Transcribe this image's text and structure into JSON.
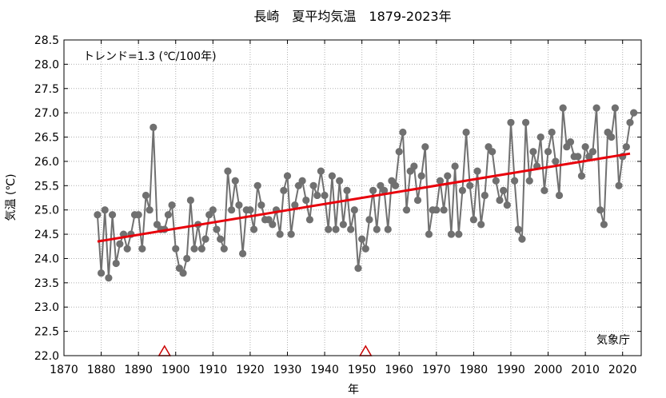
{
  "chart_data": {
    "type": "line",
    "title": "長崎　夏平均気温　1879-2023年",
    "xlabel": "年",
    "ylabel": "気温 (℃)",
    "xlim": [
      1870,
      2025
    ],
    "ylim": [
      22.0,
      28.5
    ],
    "xticks": [
      1870,
      1880,
      1890,
      1900,
      1910,
      1920,
      1930,
      1940,
      1950,
      1960,
      1970,
      1980,
      1990,
      2000,
      2010,
      2020
    ],
    "yticks": [
      "22.0",
      "22.5",
      "23.0",
      "23.5",
      "24.0",
      "24.5",
      "25.0",
      "25.5",
      "26.0",
      "26.5",
      "27.0",
      "27.5",
      "28.0",
      "28.5"
    ],
    "grid": true,
    "trend_label": "トレンド=1.3 (℃/100年)",
    "source_label": "気象庁",
    "colors": {
      "series": "#707070",
      "trend": "#e8000b",
      "marker": "#cc0000",
      "grid": "#b0b0b0"
    },
    "series": [
      {
        "values": [
          {
            "x": 1879,
            "y": 24.9
          },
          {
            "x": 1880,
            "y": 23.7
          },
          {
            "x": 1881,
            "y": 25.0
          },
          {
            "x": 1882,
            "y": 23.6
          },
          {
            "x": 1883,
            "y": 24.9
          },
          {
            "x": 1884,
            "y": 23.9
          },
          {
            "x": 1885,
            "y": 24.3
          },
          {
            "x": 1886,
            "y": 24.5
          },
          {
            "x": 1887,
            "y": 24.2
          },
          {
            "x": 1888,
            "y": 24.5
          },
          {
            "x": 1889,
            "y": 24.9
          },
          {
            "x": 1890,
            "y": 24.9
          },
          {
            "x": 1891,
            "y": 24.2
          },
          {
            "x": 1892,
            "y": 25.3
          },
          {
            "x": 1893,
            "y": 25.0
          },
          {
            "x": 1894,
            "y": 26.7
          },
          {
            "x": 1895,
            "y": 24.7
          },
          {
            "x": 1896,
            "y": 24.6
          },
          {
            "x": 1897,
            "y": 24.6
          },
          {
            "x": 1898,
            "y": 24.9
          },
          {
            "x": 1899,
            "y": 25.1
          },
          {
            "x": 1900,
            "y": 24.2
          },
          {
            "x": 1901,
            "y": 23.8
          },
          {
            "x": 1902,
            "y": 23.7
          },
          {
            "x": 1903,
            "y": 24.0
          },
          {
            "x": 1904,
            "y": 25.2
          },
          {
            "x": 1905,
            "y": 24.2
          },
          {
            "x": 1906,
            "y": 24.7
          },
          {
            "x": 1907,
            "y": 24.2
          },
          {
            "x": 1908,
            "y": 24.4
          },
          {
            "x": 1909,
            "y": 24.9
          },
          {
            "x": 1910,
            "y": 25.0
          },
          {
            "x": 1911,
            "y": 24.6
          },
          {
            "x": 1912,
            "y": 24.4
          },
          {
            "x": 1913,
            "y": 24.2
          },
          {
            "x": 1914,
            "y": 25.8
          },
          {
            "x": 1915,
            "y": 25.0
          },
          {
            "x": 1916,
            "y": 25.6
          },
          {
            "x": 1917,
            "y": 25.1
          },
          {
            "x": 1918,
            "y": 24.1
          },
          {
            "x": 1919,
            "y": 25.0
          },
          {
            "x": 1920,
            "y": 25.0
          },
          {
            "x": 1921,
            "y": 24.6
          },
          {
            "x": 1922,
            "y": 25.5
          },
          {
            "x": 1923,
            "y": 25.1
          },
          {
            "x": 1924,
            "y": 24.8
          },
          {
            "x": 1925,
            "y": 24.8
          },
          {
            "x": 1926,
            "y": 24.7
          },
          {
            "x": 1927,
            "y": 25.0
          },
          {
            "x": 1928,
            "y": 24.5
          },
          {
            "x": 1929,
            "y": 25.4
          },
          {
            "x": 1930,
            "y": 25.7
          },
          {
            "x": 1931,
            "y": 24.5
          },
          {
            "x": 1932,
            "y": 25.1
          },
          {
            "x": 1933,
            "y": 25.5
          },
          {
            "x": 1934,
            "y": 25.6
          },
          {
            "x": 1935,
            "y": 25.2
          },
          {
            "x": 1936,
            "y": 24.8
          },
          {
            "x": 1937,
            "y": 25.5
          },
          {
            "x": 1938,
            "y": 25.3
          },
          {
            "x": 1939,
            "y": 25.8
          },
          {
            "x": 1940,
            "y": 25.3
          },
          {
            "x": 1941,
            "y": 24.6
          },
          {
            "x": 1942,
            "y": 25.7
          },
          {
            "x": 1943,
            "y": 24.6
          },
          {
            "x": 1944,
            "y": 25.6
          },
          {
            "x": 1945,
            "y": 24.7
          },
          {
            "x": 1946,
            "y": 25.4
          },
          {
            "x": 1947,
            "y": 24.6
          },
          {
            "x": 1948,
            "y": 25.0
          },
          {
            "x": 1949,
            "y": 23.8
          },
          {
            "x": 1950,
            "y": 24.4
          },
          {
            "x": 1951,
            "y": 24.2
          },
          {
            "x": 1952,
            "y": 24.8
          },
          {
            "x": 1953,
            "y": 25.4
          },
          {
            "x": 1954,
            "y": 24.6
          },
          {
            "x": 1955,
            "y": 25.5
          },
          {
            "x": 1956,
            "y": 25.4
          },
          {
            "x": 1957,
            "y": 24.6
          },
          {
            "x": 1958,
            "y": 25.6
          },
          {
            "x": 1959,
            "y": 25.5
          },
          {
            "x": 1960,
            "y": 26.2
          },
          {
            "x": 1961,
            "y": 26.6
          },
          {
            "x": 1962,
            "y": 25.0
          },
          {
            "x": 1963,
            "y": 25.8
          },
          {
            "x": 1964,
            "y": 25.9
          },
          {
            "x": 1965,
            "y": 25.2
          },
          {
            "x": 1966,
            "y": 25.7
          },
          {
            "x": 1967,
            "y": 26.3
          },
          {
            "x": 1968,
            "y": 24.5
          },
          {
            "x": 1969,
            "y": 25.0
          },
          {
            "x": 1970,
            "y": 25.0
          },
          {
            "x": 1971,
            "y": 25.6
          },
          {
            "x": 1972,
            "y": 25.0
          },
          {
            "x": 1973,
            "y": 25.7
          },
          {
            "x": 1974,
            "y": 24.5
          },
          {
            "x": 1975,
            "y": 25.9
          },
          {
            "x": 1976,
            "y": 24.5
          },
          {
            "x": 1977,
            "y": 25.4
          },
          {
            "x": 1978,
            "y": 26.6
          },
          {
            "x": 1979,
            "y": 25.5
          },
          {
            "x": 1980,
            "y": 24.8
          },
          {
            "x": 1981,
            "y": 25.8
          },
          {
            "x": 1982,
            "y": 24.7
          },
          {
            "x": 1983,
            "y": 25.3
          },
          {
            "x": 1984,
            "y": 26.3
          },
          {
            "x": 1985,
            "y": 26.2
          },
          {
            "x": 1986,
            "y": 25.6
          },
          {
            "x": 1987,
            "y": 25.2
          },
          {
            "x": 1988,
            "y": 25.4
          },
          {
            "x": 1989,
            "y": 25.1
          },
          {
            "x": 1990,
            "y": 26.8
          },
          {
            "x": 1991,
            "y": 25.6
          },
          {
            "x": 1992,
            "y": 24.6
          },
          {
            "x": 1993,
            "y": 24.4
          },
          {
            "x": 1994,
            "y": 26.8
          },
          {
            "x": 1995,
            "y": 25.6
          },
          {
            "x": 1996,
            "y": 26.2
          },
          {
            "x": 1997,
            "y": 25.9
          },
          {
            "x": 1998,
            "y": 26.5
          },
          {
            "x": 1999,
            "y": 25.4
          },
          {
            "x": 2000,
            "y": 26.2
          },
          {
            "x": 2001,
            "y": 26.6
          },
          {
            "x": 2002,
            "y": 26.0
          },
          {
            "x": 2003,
            "y": 25.3
          },
          {
            "x": 2004,
            "y": 27.1
          },
          {
            "x": 2005,
            "y": 26.3
          },
          {
            "x": 2006,
            "y": 26.4
          },
          {
            "x": 2007,
            "y": 26.1
          },
          {
            "x": 2008,
            "y": 26.1
          },
          {
            "x": 2009,
            "y": 25.7
          },
          {
            "x": 2010,
            "y": 26.3
          },
          {
            "x": 2011,
            "y": 26.1
          },
          {
            "x": 2012,
            "y": 26.2
          },
          {
            "x": 2013,
            "y": 27.1
          },
          {
            "x": 2014,
            "y": 25.0
          },
          {
            "x": 2015,
            "y": 24.7
          },
          {
            "x": 2016,
            "y": 26.6
          },
          {
            "x": 2017,
            "y": 26.5
          },
          {
            "x": 2018,
            "y": 27.1
          },
          {
            "x": 2019,
            "y": 25.5
          },
          {
            "x": 2020,
            "y": 26.1
          },
          {
            "x": 2021,
            "y": 26.3
          },
          {
            "x": 2022,
            "y": 26.8
          },
          {
            "x": 2023,
            "y": 27.0
          }
        ]
      }
    ],
    "trend_line": [
      {
        "x": 1879,
        "y": 24.35
      },
      {
        "x": 2022,
        "y": 26.16
      }
    ],
    "markers": [
      {
        "x": 1897,
        "shape": "triangle"
      },
      {
        "x": 1951,
        "shape": "triangle"
      }
    ]
  }
}
